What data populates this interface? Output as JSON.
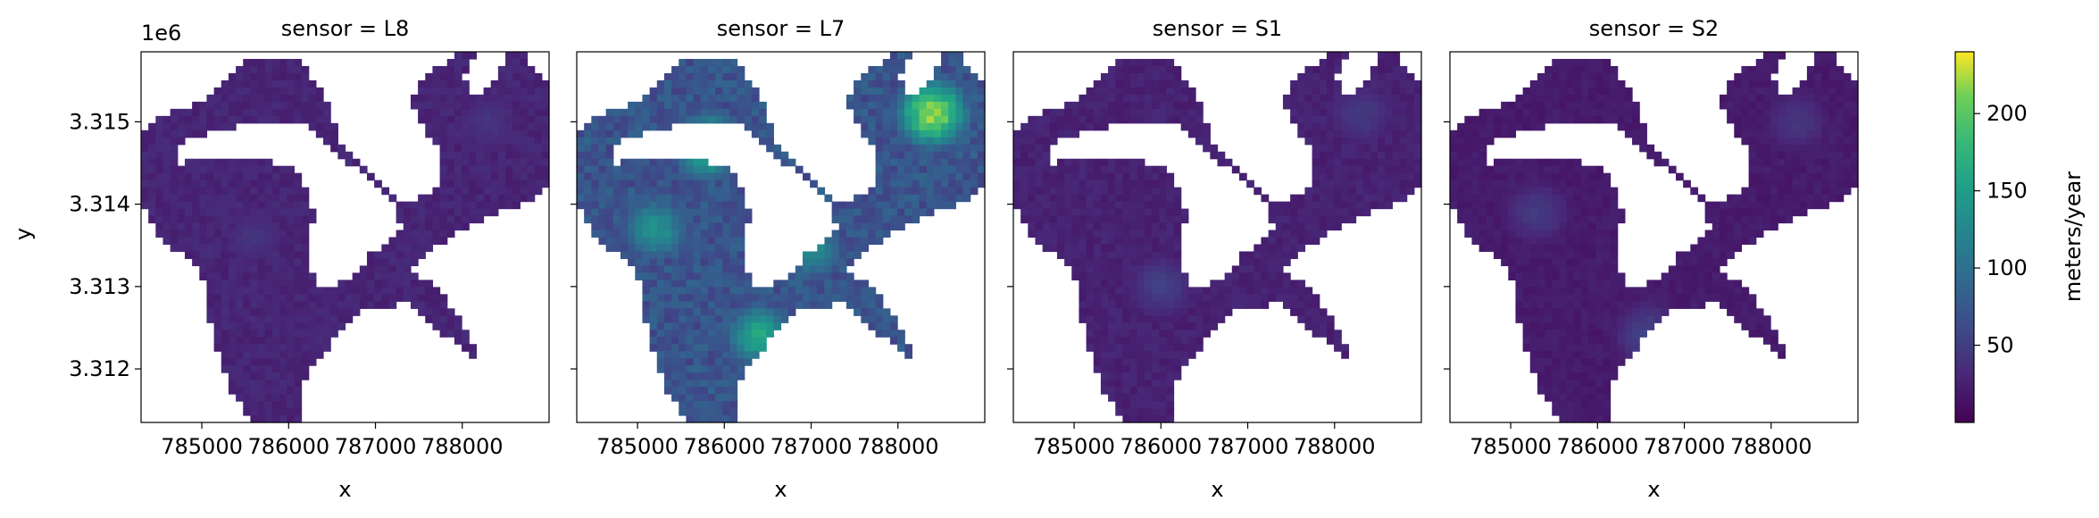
{
  "chart_data": {
    "type": "heatmap",
    "layout": "facet-grid",
    "facet_variable": "sensor",
    "xlabel": "x",
    "ylabel": "y",
    "y_offset_label": "1e6",
    "xlim": [
      784300,
      789000
    ],
    "ylim": [
      3311350,
      3315850
    ],
    "x_ticks": [
      785000,
      786000,
      787000,
      788000
    ],
    "x_tick_labels": [
      "785000",
      "786000",
      "787000",
      "788000"
    ],
    "y_ticks": [
      3312000,
      3313000,
      3314000,
      3315000
    ],
    "y_tick_labels": [
      "3.312",
      "3.313",
      "3.314",
      "3.315"
    ],
    "colormap": "viridis",
    "colorbar": {
      "label": "meters/year",
      "range": [
        0,
        240
      ],
      "ticks": [
        50,
        100,
        150,
        200
      ],
      "tick_labels": [
        "50",
        "100",
        "150",
        "200"
      ]
    },
    "panels": [
      {
        "title": "sensor = L8",
        "sensor": "L8",
        "typical_value": 28,
        "hotspots": [
          {
            "x": 785600,
            "y": 3313600,
            "value": 45
          },
          {
            "x": 788300,
            "y": 3315000,
            "value": 45
          },
          {
            "x": 786400,
            "y": 3312400,
            "value": 35
          }
        ]
      },
      {
        "title": "sensor = L7",
        "sensor": "L7",
        "typical_value": 70,
        "hotspots": [
          {
            "x": 785800,
            "y": 3314700,
            "value": 195
          },
          {
            "x": 788400,
            "y": 3315100,
            "value": 235
          },
          {
            "x": 786400,
            "y": 3312400,
            "value": 170
          },
          {
            "x": 785200,
            "y": 3313700,
            "value": 150
          },
          {
            "x": 787000,
            "y": 3313450,
            "value": 140
          }
        ]
      },
      {
        "title": "sensor = S1",
        "sensor": "S1",
        "typical_value": 25,
        "hotspots": [
          {
            "x": 786000,
            "y": 3313000,
            "value": 55
          },
          {
            "x": 788300,
            "y": 3315100,
            "value": 50
          }
        ]
      },
      {
        "title": "sensor = S2",
        "sensor": "S2",
        "typical_value": 20,
        "hotspots": [
          {
            "x": 786600,
            "y": 3312400,
            "value": 60
          },
          {
            "x": 785300,
            "y": 3313900,
            "value": 50
          },
          {
            "x": 788300,
            "y": 3315000,
            "value": 45
          }
        ]
      }
    ]
  }
}
